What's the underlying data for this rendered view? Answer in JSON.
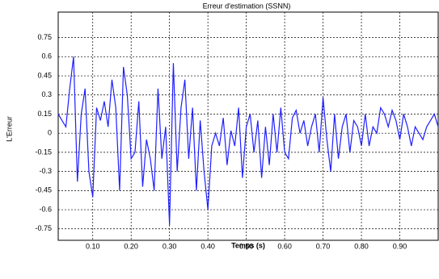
{
  "chart_data": {
    "type": "line",
    "title": "Erreur d'estimation (SSNN)",
    "xlabel": "Temps (s)",
    "ylabel": "L'Erreur",
    "x": [
      0.01,
      0.02,
      0.03,
      0.04,
      0.05,
      0.06,
      0.07,
      0.08,
      0.09,
      0.1,
      0.11,
      0.12,
      0.13,
      0.14,
      0.15,
      0.16,
      0.17,
      0.18,
      0.19,
      0.2,
      0.21,
      0.22,
      0.23,
      0.24,
      0.25,
      0.26,
      0.27,
      0.28,
      0.29,
      0.3,
      0.31,
      0.32,
      0.33,
      0.34,
      0.35,
      0.36,
      0.37,
      0.38,
      0.39,
      0.4,
      0.41,
      0.42,
      0.43,
      0.44,
      0.45,
      0.46,
      0.47,
      0.48,
      0.49,
      0.5,
      0.51,
      0.52,
      0.53,
      0.54,
      0.55,
      0.56,
      0.57,
      0.58,
      0.59,
      0.6,
      0.61,
      0.62,
      0.63,
      0.64,
      0.65,
      0.66,
      0.67,
      0.68,
      0.69,
      0.7,
      0.71,
      0.72,
      0.73,
      0.74,
      0.75,
      0.76,
      0.77,
      0.78,
      0.79,
      0.8,
      0.81,
      0.82,
      0.83,
      0.84,
      0.85,
      0.86,
      0.87,
      0.88,
      0.89,
      0.9,
      0.91,
      0.92,
      0.93,
      0.94,
      0.95,
      0.96,
      0.97,
      0.98,
      0.99,
      1.0
    ],
    "series": [
      {
        "name": "Erreur",
        "color": "#1f1fff",
        "values": [
          0.15,
          0.1,
          0.05,
          0.35,
          0.6,
          -0.38,
          0.15,
          0.35,
          -0.3,
          -0.5,
          0.2,
          0.1,
          0.25,
          0.05,
          0.42,
          0.2,
          -0.45,
          0.52,
          0.3,
          -0.2,
          -0.15,
          0.25,
          -0.42,
          -0.05,
          -0.2,
          -0.45,
          0.35,
          -0.2,
          0.05,
          -0.72,
          0.55,
          -0.3,
          0.2,
          0.42,
          -0.2,
          0.2,
          -0.45,
          0.1,
          -0.3,
          -0.6,
          -0.1,
          0.0,
          -0.1,
          0.12,
          -0.25,
          0.02,
          -0.1,
          0.2,
          -0.35,
          0.05,
          0.15,
          -0.15,
          0.1,
          -0.35,
          0.05,
          -0.25,
          0.15,
          -0.15,
          0.2,
          -0.15,
          -0.2,
          0.12,
          0.18,
          0.0,
          0.1,
          -0.1,
          0.05,
          0.15,
          -0.15,
          0.28,
          -0.05,
          -0.3,
          0.15,
          -0.2,
          0.05,
          0.15,
          -0.15,
          0.1,
          0.05,
          -0.1,
          0.15,
          -0.1,
          0.05,
          0.0,
          0.2,
          0.15,
          0.05,
          0.18,
          0.1,
          -0.05,
          0.15,
          0.05,
          -0.1,
          0.05,
          0.0,
          -0.05,
          0.05,
          0.1,
          0.15,
          0.05
        ]
      }
    ],
    "xlim": [
      0.01,
      1.0
    ],
    "ylim": [
      -0.84,
      0.95
    ],
    "xticks": [
      {
        "value": 0.1,
        "label": "0.10"
      },
      {
        "value": 0.2,
        "label": "0.20"
      },
      {
        "value": 0.3,
        "label": "0.30"
      },
      {
        "value": 0.4,
        "label": "0.40"
      },
      {
        "value": 0.5,
        "label": "0.50"
      },
      {
        "value": 0.6,
        "label": "0.60"
      },
      {
        "value": 0.7,
        "label": "0.70"
      },
      {
        "value": 0.8,
        "label": "0.80"
      },
      {
        "value": 0.9,
        "label": "0.90"
      }
    ],
    "yticks": [
      0.75,
      0.6,
      0.45,
      0.3,
      0.15,
      0,
      -0.15,
      -0.3,
      -0.45,
      -0.6,
      -0.75
    ],
    "grid": true
  }
}
